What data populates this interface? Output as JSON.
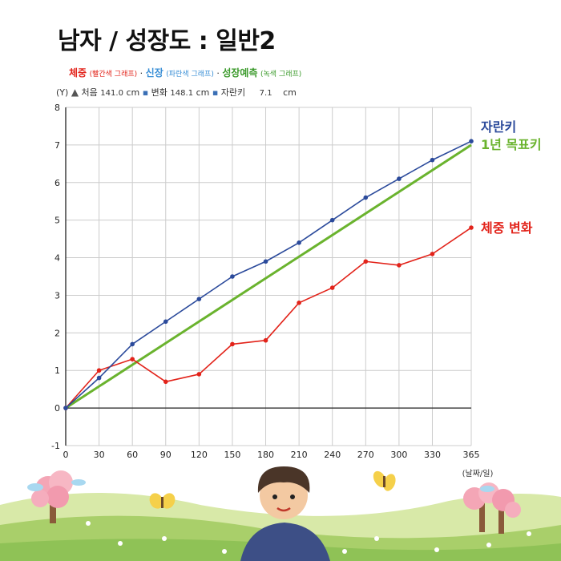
{
  "title": "남자 / 성장도 : 일반2",
  "legend": {
    "weight": "체중",
    "weight_paren": "(빨간색 그래프)",
    "height": "신장",
    "height_paren": "(파란색 그래프)",
    "pred": "성장예측",
    "pred_paren": "(녹색 그래프)",
    "sep": "·"
  },
  "info": {
    "yunit": "(Y)",
    "first_label": "처음",
    "first_value": "141.0",
    "first_unit": "cm",
    "change_label": "변화",
    "change_value": "148.1",
    "change_unit": "cm",
    "growth_label": "자란키",
    "growth_value": "7.1",
    "growth_unit": "cm"
  },
  "colors": {
    "height": "#2b4a9b",
    "weight": "#e2231a",
    "target": "#6ab32e",
    "grid": "#cccccc"
  },
  "chart_data": {
    "type": "line",
    "x": [
      0,
      30,
      60,
      90,
      120,
      150,
      180,
      210,
      240,
      270,
      300,
      330,
      365
    ],
    "xticks": [
      "0",
      "30",
      "60",
      "90",
      "120",
      "150",
      "180",
      "210",
      "240",
      "270",
      "300",
      "330",
      "365"
    ],
    "yticks": [
      "-1",
      "0",
      "1",
      "2",
      "3",
      "4",
      "5",
      "6",
      "7",
      "8"
    ],
    "xlim": [
      0,
      365
    ],
    "ylim": [
      -1,
      8
    ],
    "xlabel": "(날짜/일)",
    "grid": true,
    "series": [
      {
        "name": "자란키",
        "key": "height",
        "values": [
          0,
          0.8,
          1.7,
          2.3,
          2.9,
          3.5,
          3.9,
          4.4,
          5.0,
          5.6,
          6.1,
          6.6,
          7.1
        ]
      },
      {
        "name": "1년 목표키",
        "key": "target",
        "x": [
          0,
          365
        ],
        "values": [
          0,
          7.0
        ]
      },
      {
        "name": "체중 변화",
        "key": "weight",
        "values": [
          0,
          1.0,
          1.3,
          0.7,
          0.9,
          1.7,
          1.8,
          2.8,
          3.2,
          3.9,
          3.8,
          4.1,
          4.8
        ]
      }
    ]
  }
}
